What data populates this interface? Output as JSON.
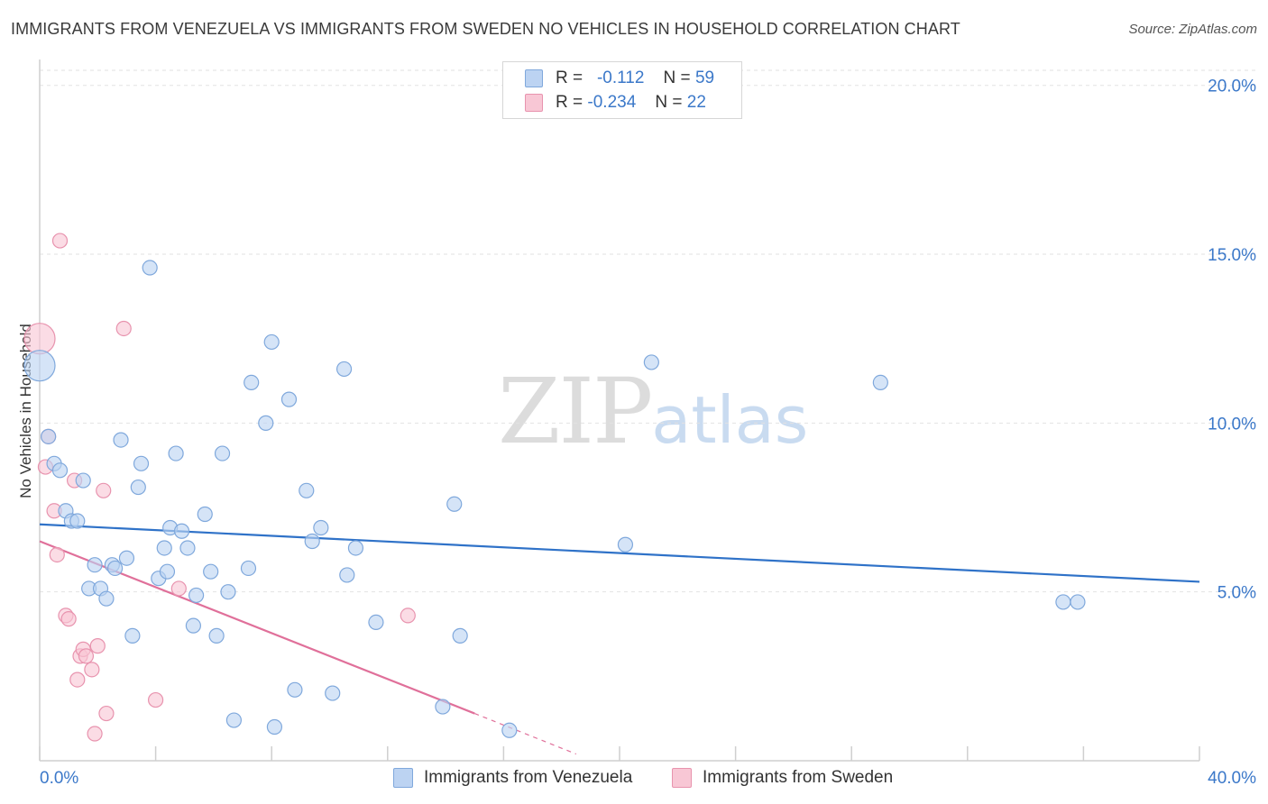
{
  "header": {
    "title": "IMMIGRANTS FROM VENEZUELA VS IMMIGRANTS FROM SWEDEN NO VEHICLES IN HOUSEHOLD CORRELATION CHART",
    "source": "Source: ZipAtlas.com"
  },
  "watermark": {
    "zip": "ZIP",
    "atlas": "atlas"
  },
  "legend": {
    "rows": [
      {
        "r_label": "R =",
        "r_value": "-0.112",
        "n_label": "N =",
        "n_value": "59"
      },
      {
        "r_label": "R =",
        "r_value": "-0.234",
        "n_label": "N =",
        "n_value": "22"
      }
    ]
  },
  "colors": {
    "venezuela_fill": "#bcd3f2",
    "venezuela_stroke": "#7fa8dc",
    "venezuela_line": "#2f72c8",
    "sweden_fill": "#f8c7d5",
    "sweden_stroke": "#e893ae",
    "sweden_line": "#e0709a",
    "axis_label": "#3b78c9",
    "grid": "#e2e2e2"
  },
  "chart_data": {
    "type": "scatter",
    "title": "IMMIGRANTS FROM VENEZUELA VS IMMIGRANTS FROM SWEDEN NO VEHICLES IN HOUSEHOLD CORRELATION CHART",
    "xlabel": "",
    "ylabel": "No Vehicles in Household",
    "xlim": [
      0,
      40
    ],
    "ylim": [
      0,
      20.5
    ],
    "x_tick_labels": [
      "0.0%",
      "40.0%"
    ],
    "y_ticks": [
      5,
      10,
      15,
      20
    ],
    "y_tick_labels": [
      "5.0%",
      "10.0%",
      "15.0%",
      "20.0%"
    ],
    "grid": true,
    "series": [
      {
        "name": "Immigrants from Venezuela",
        "r": -0.112,
        "n": 59,
        "trend": {
          "x0": 0,
          "y0": 7.0,
          "x1": 40,
          "y1": 5.3
        },
        "points": [
          {
            "x": 0.0,
            "y": 11.7,
            "big": true
          },
          {
            "x": 0.3,
            "y": 9.6
          },
          {
            "x": 0.5,
            "y": 8.8
          },
          {
            "x": 0.7,
            "y": 8.6
          },
          {
            "x": 0.9,
            "y": 7.4
          },
          {
            "x": 1.1,
            "y": 7.1
          },
          {
            "x": 1.3,
            "y": 7.1
          },
          {
            "x": 1.5,
            "y": 8.3
          },
          {
            "x": 1.7,
            "y": 5.1
          },
          {
            "x": 1.9,
            "y": 5.8
          },
          {
            "x": 2.1,
            "y": 5.1
          },
          {
            "x": 2.3,
            "y": 4.8
          },
          {
            "x": 2.5,
            "y": 5.8
          },
          {
            "x": 2.6,
            "y": 5.7
          },
          {
            "x": 3.0,
            "y": 6.0
          },
          {
            "x": 3.2,
            "y": 3.7
          },
          {
            "x": 3.4,
            "y": 8.1
          },
          {
            "x": 3.5,
            "y": 8.8
          },
          {
            "x": 2.8,
            "y": 9.5
          },
          {
            "x": 3.8,
            "y": 14.6
          },
          {
            "x": 4.1,
            "y": 5.4
          },
          {
            "x": 4.3,
            "y": 6.3
          },
          {
            "x": 4.4,
            "y": 5.6
          },
          {
            "x": 4.5,
            "y": 6.9
          },
          {
            "x": 4.7,
            "y": 9.1
          },
          {
            "x": 4.9,
            "y": 6.8
          },
          {
            "x": 5.1,
            "y": 6.3
          },
          {
            "x": 5.3,
            "y": 4.0
          },
          {
            "x": 5.4,
            "y": 4.9
          },
          {
            "x": 5.7,
            "y": 7.3
          },
          {
            "x": 5.9,
            "y": 5.6
          },
          {
            "x": 6.1,
            "y": 3.7
          },
          {
            "x": 6.3,
            "y": 9.1
          },
          {
            "x": 6.5,
            "y": 5.0
          },
          {
            "x": 6.7,
            "y": 1.2
          },
          {
            "x": 7.2,
            "y": 5.7
          },
          {
            "x": 7.3,
            "y": 11.2
          },
          {
            "x": 7.8,
            "y": 10.0
          },
          {
            "x": 8.0,
            "y": 12.4
          },
          {
            "x": 8.1,
            "y": 1.0
          },
          {
            "x": 8.6,
            "y": 10.7
          },
          {
            "x": 8.8,
            "y": 2.1
          },
          {
            "x": 9.2,
            "y": 8.0
          },
          {
            "x": 9.4,
            "y": 6.5
          },
          {
            "x": 9.7,
            "y": 6.9
          },
          {
            "x": 10.1,
            "y": 2.0
          },
          {
            "x": 10.5,
            "y": 11.6
          },
          {
            "x": 10.6,
            "y": 5.5
          },
          {
            "x": 10.9,
            "y": 6.3
          },
          {
            "x": 11.6,
            "y": 4.1
          },
          {
            "x": 13.9,
            "y": 1.6
          },
          {
            "x": 14.3,
            "y": 7.6
          },
          {
            "x": 14.5,
            "y": 3.7
          },
          {
            "x": 16.2,
            "y": 0.9
          },
          {
            "x": 20.2,
            "y": 6.4
          },
          {
            "x": 21.1,
            "y": 11.8
          },
          {
            "x": 29.0,
            "y": 11.2
          },
          {
            "x": 35.3,
            "y": 4.7
          },
          {
            "x": 35.8,
            "y": 4.7
          }
        ]
      },
      {
        "name": "Immigrants from Sweden",
        "r": -0.234,
        "n": 22,
        "trend": {
          "x0": 0,
          "y0": 6.5,
          "x1": 15.0,
          "y1": 1.4,
          "dash_x1": 18.5,
          "dash_y1": 0.2
        },
        "points": [
          {
            "x": 0.0,
            "y": 12.5,
            "big": true
          },
          {
            "x": 0.3,
            "y": 9.6
          },
          {
            "x": 0.2,
            "y": 8.7
          },
          {
            "x": 0.5,
            "y": 7.4
          },
          {
            "x": 0.6,
            "y": 6.1
          },
          {
            "x": 0.7,
            "y": 15.4
          },
          {
            "x": 0.9,
            "y": 4.3
          },
          {
            "x": 1.0,
            "y": 4.2
          },
          {
            "x": 1.2,
            "y": 8.3
          },
          {
            "x": 1.3,
            "y": 2.4
          },
          {
            "x": 1.4,
            "y": 3.1
          },
          {
            "x": 1.5,
            "y": 3.3
          },
          {
            "x": 1.6,
            "y": 3.1
          },
          {
            "x": 1.8,
            "y": 2.7
          },
          {
            "x": 1.9,
            "y": 0.8
          },
          {
            "x": 2.0,
            "y": 3.4
          },
          {
            "x": 2.2,
            "y": 8.0
          },
          {
            "x": 2.3,
            "y": 1.4
          },
          {
            "x": 2.9,
            "y": 12.8
          },
          {
            "x": 4.0,
            "y": 1.8
          },
          {
            "x": 4.8,
            "y": 5.1
          },
          {
            "x": 12.7,
            "y": 4.3
          }
        ]
      }
    ]
  },
  "bottom_legend": {
    "items": [
      {
        "label": "Immigrants from Venezuela"
      },
      {
        "label": "Immigrants from Sweden"
      }
    ]
  }
}
